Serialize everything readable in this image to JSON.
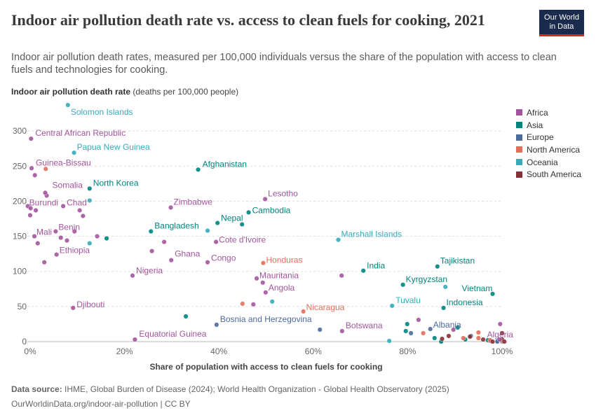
{
  "header": {
    "title": "Indoor air pollution death rate vs. access to clean fuels for cooking, 2021",
    "subtitle": "Indoor air pollution death rates, measured per 100,000 individuals versus the share of the population with access to clean fuels and technologies for cooking.",
    "logo_line1": "Our World",
    "logo_line2": "in Data"
  },
  "y_axis_label": {
    "bold": "Indoor air pollution death rate",
    "rest": "(deaths per 100,000 people)"
  },
  "footer": {
    "source_label": "Data source:",
    "source_text": "IHME, Global Burden of Disease (2024); World Health Organization - Global Health Observatory (2025)",
    "url": "OurWorldinData.org/indoor-air-pollution | CC BY"
  },
  "colors": {
    "Africa": "#a2559c",
    "Asia": "#00847e",
    "Europe": "#4c6a9c",
    "North America": "#e56e5a",
    "Oceania": "#38aaba",
    "South America": "#883039"
  },
  "chart_data": {
    "type": "scatter",
    "xlabel": "Share of population with access to clean fuels for cooking",
    "ylabel": "Indoor air pollution death rate (deaths per 100,000 people)",
    "xlim": [
      0,
      100
    ],
    "ylim": [
      0,
      340
    ],
    "x_ticks": [
      "0%",
      "20%",
      "40%",
      "60%",
      "80%",
      "100%"
    ],
    "y_ticks": [
      "0",
      "50",
      "100",
      "150",
      "200",
      "250",
      "300"
    ],
    "grid": "horizontal dashed",
    "legend": [
      "Africa",
      "Asia",
      "Europe",
      "North America",
      "Oceania",
      "South America"
    ],
    "legend_position": "right",
    "points": [
      {
        "label": "Solomon Islands",
        "region": "Oceania",
        "x": 8.0,
        "y": 337
      },
      {
        "label": "Central African Republic",
        "region": "Africa",
        "x": 0.2,
        "y": 289
      },
      {
        "label": "Papua New Guinea",
        "region": "Oceania",
        "x": 9.3,
        "y": 269
      },
      {
        "label": "Guinea-Bissau",
        "region": "Africa",
        "x": 0.3,
        "y": 247
      },
      {
        "label": "Afghanistan",
        "region": "Asia",
        "x": 35.6,
        "y": 245
      },
      {
        "label": "Somalia",
        "region": "Africa",
        "x": 3.2,
        "y": 212
      },
      {
        "label": "North Korea",
        "region": "Asia",
        "x": 12.6,
        "y": 218
      },
      {
        "label": "Lesotho",
        "region": "Africa",
        "x": 49.8,
        "y": 203
      },
      {
        "label": "Zimbabwe",
        "region": "Africa",
        "x": 29.8,
        "y": 191
      },
      {
        "label": "Cambodia",
        "region": "Asia",
        "x": 46.3,
        "y": 184
      },
      {
        "label": "Burundi",
        "region": "Africa",
        "x": 0.1,
        "y": 190
      },
      {
        "label": "Chad",
        "region": "Africa",
        "x": 7.0,
        "y": 193
      },
      {
        "label": "Nepal",
        "region": "Asia",
        "x": 39.7,
        "y": 169
      },
      {
        "label": "Bangladesh",
        "region": "Asia",
        "x": 25.6,
        "y": 157
      },
      {
        "label": "Mali",
        "region": "Africa",
        "x": 0.9,
        "y": 150
      },
      {
        "label": "Benin",
        "region": "Africa",
        "x": 5.4,
        "y": 157
      },
      {
        "label": "Cote d'Ivoire",
        "region": "Africa",
        "x": 39.4,
        "y": 142
      },
      {
        "label": "Marshall Islands",
        "region": "Oceania",
        "x": 65.3,
        "y": 145
      },
      {
        "label": "Ethiopia",
        "region": "Africa",
        "x": 5.6,
        "y": 124
      },
      {
        "label": "Ghana",
        "region": "Africa",
        "x": 29.9,
        "y": 116
      },
      {
        "label": "Congo",
        "region": "Africa",
        "x": 37.6,
        "y": 113
      },
      {
        "label": "Honduras",
        "region": "North America",
        "x": 49.4,
        "y": 112
      },
      {
        "label": "Tajikistan",
        "region": "Asia",
        "x": 86.3,
        "y": 107
      },
      {
        "label": "India",
        "region": "Asia",
        "x": 70.6,
        "y": 101
      },
      {
        "label": "Nigeria",
        "region": "Africa",
        "x": 21.7,
        "y": 94
      },
      {
        "label": "Mauritania",
        "region": "Africa",
        "x": 48.0,
        "y": 90
      },
      {
        "label": "Kyrgyzstan",
        "region": "Asia",
        "x": 79.0,
        "y": 81
      },
      {
        "label": "Vietnam",
        "region": "Asia",
        "x": 98.0,
        "y": 68
      },
      {
        "label": "Angola",
        "region": "Africa",
        "x": 49.9,
        "y": 70
      },
      {
        "label": "Tuvalu",
        "region": "Oceania",
        "x": 76.7,
        "y": 51
      },
      {
        "label": "Indonesia",
        "region": "Asia",
        "x": 87.6,
        "y": 48
      },
      {
        "label": "Djibouti",
        "region": "Africa",
        "x": 9.1,
        "y": 48
      },
      {
        "label": "Nicaragua",
        "region": "North America",
        "x": 57.9,
        "y": 43
      },
      {
        "label": "Bosnia and Herzegovina",
        "region": "Europe",
        "x": 39.5,
        "y": 24
      },
      {
        "label": "Botswana",
        "region": "Africa",
        "x": 66.1,
        "y": 15
      },
      {
        "label": "Albania",
        "region": "Europe",
        "x": 84.8,
        "y": 18
      },
      {
        "label": "Equatorial Guinea",
        "region": "Africa",
        "x": 22.2,
        "y": 3
      },
      {
        "label": "Algeria",
        "region": "Africa",
        "x": 99.5,
        "y": 3
      },
      {
        "label": "",
        "region": "Africa",
        "x": 1.0,
        "y": 237
      },
      {
        "label": "",
        "region": "Africa",
        "x": 3.5,
        "y": 208
      },
      {
        "label": "",
        "region": "Africa",
        "x": -0.5,
        "y": 193
      },
      {
        "label": "",
        "region": "Africa",
        "x": 1.2,
        "y": 187
      },
      {
        "label": "",
        "region": "Africa",
        "x": 10.5,
        "y": 187
      },
      {
        "label": "",
        "region": "Africa",
        "x": 11.2,
        "y": 179
      },
      {
        "label": "",
        "region": "Africa",
        "x": 0.0,
        "y": 180
      },
      {
        "label": "",
        "region": "Africa",
        "x": 9.4,
        "y": 157
      },
      {
        "label": "",
        "region": "Africa",
        "x": 14.2,
        "y": 150
      },
      {
        "label": "",
        "region": "Africa",
        "x": 6.5,
        "y": 148
      },
      {
        "label": "",
        "region": "Africa",
        "x": 7.8,
        "y": 144
      },
      {
        "label": "",
        "region": "Africa",
        "x": 1.6,
        "y": 140
      },
      {
        "label": "",
        "region": "Africa",
        "x": 28.4,
        "y": 142
      },
      {
        "label": "",
        "region": "Africa",
        "x": 25.8,
        "y": 129
      },
      {
        "label": "",
        "region": "Africa",
        "x": 3.0,
        "y": 113
      },
      {
        "label": "",
        "region": "Africa",
        "x": 66.0,
        "y": 94
      },
      {
        "label": "",
        "region": "Africa",
        "x": 49.3,
        "y": 84
      },
      {
        "label": "",
        "region": "Africa",
        "x": 47.3,
        "y": 53
      },
      {
        "label": "",
        "region": "Africa",
        "x": 82.3,
        "y": 31
      },
      {
        "label": "",
        "region": "Africa",
        "x": 89.7,
        "y": 17
      },
      {
        "label": "",
        "region": "Africa",
        "x": 99.6,
        "y": 25
      },
      {
        "label": "",
        "region": "Asia",
        "x": 16.2,
        "y": 147
      },
      {
        "label": "",
        "region": "Asia",
        "x": 44.9,
        "y": 167
      },
      {
        "label": "",
        "region": "Asia",
        "x": 33.0,
        "y": 36
      },
      {
        "label": "",
        "region": "Asia",
        "x": 79.9,
        "y": 25
      },
      {
        "label": "",
        "region": "Asia",
        "x": 79.6,
        "y": 15
      },
      {
        "label": "",
        "region": "Asia",
        "x": 90.6,
        "y": 20
      },
      {
        "label": "",
        "region": "Asia",
        "x": 92.2,
        "y": 3
      },
      {
        "label": "",
        "region": "Asia",
        "x": 85.7,
        "y": 5
      },
      {
        "label": "",
        "region": "Asia",
        "x": 87.1,
        "y": 0
      },
      {
        "label": "",
        "region": "Asia",
        "x": 97.0,
        "y": 2
      },
      {
        "label": "",
        "region": "Oceania",
        "x": 12.6,
        "y": 201
      },
      {
        "label": "",
        "region": "Oceania",
        "x": 37.6,
        "y": 158
      },
      {
        "label": "",
        "region": "Oceania",
        "x": 12.6,
        "y": 140
      },
      {
        "label": "",
        "region": "Oceania",
        "x": 51.3,
        "y": 57
      },
      {
        "label": "",
        "region": "Oceania",
        "x": 88.0,
        "y": 78
      },
      {
        "label": "",
        "region": "Oceania",
        "x": 76.1,
        "y": 1
      },
      {
        "label": "",
        "region": "Oceania",
        "x": 99.0,
        "y": 1
      },
      {
        "label": "",
        "region": "Europe",
        "x": 61.4,
        "y": 17
      },
      {
        "label": "",
        "region": "Europe",
        "x": 80.7,
        "y": 12
      },
      {
        "label": "",
        "region": "Europe",
        "x": 93.4,
        "y": 8
      },
      {
        "label": "",
        "region": "Europe",
        "x": 97.5,
        "y": 1
      },
      {
        "label": "",
        "region": "Europe",
        "x": 99.0,
        "y": 0
      },
      {
        "label": "",
        "region": "Europe",
        "x": 100.0,
        "y": 0
      },
      {
        "label": "",
        "region": "North America",
        "x": 3.3,
        "y": 246
      },
      {
        "label": "",
        "region": "North America",
        "x": 45.0,
        "y": 54
      },
      {
        "label": "",
        "region": "North America",
        "x": 83.3,
        "y": 12
      },
      {
        "label": "",
        "region": "North America",
        "x": 91.8,
        "y": 5
      },
      {
        "label": "",
        "region": "North America",
        "x": 95.0,
        "y": 13
      },
      {
        "label": "",
        "region": "North America",
        "x": 95.0,
        "y": 5
      },
      {
        "label": "",
        "region": "North America",
        "x": 97.5,
        "y": 2
      },
      {
        "label": "",
        "region": "North America",
        "x": 100.0,
        "y": 1
      },
      {
        "label": "",
        "region": "South America",
        "x": 87.3,
        "y": 4
      },
      {
        "label": "",
        "region": "South America",
        "x": 88.7,
        "y": 8
      },
      {
        "label": "",
        "region": "South America",
        "x": 93.2,
        "y": 7
      },
      {
        "label": "",
        "region": "South America",
        "x": 96.0,
        "y": 3
      },
      {
        "label": "",
        "region": "South America",
        "x": 98.0,
        "y": 0
      },
      {
        "label": "",
        "region": "South America",
        "x": 100.0,
        "y": 12
      },
      {
        "label": "",
        "region": "South America",
        "x": 100.0,
        "y": 3
      },
      {
        "label": "",
        "region": "South America",
        "x": 100.5,
        "y": 0
      }
    ]
  }
}
